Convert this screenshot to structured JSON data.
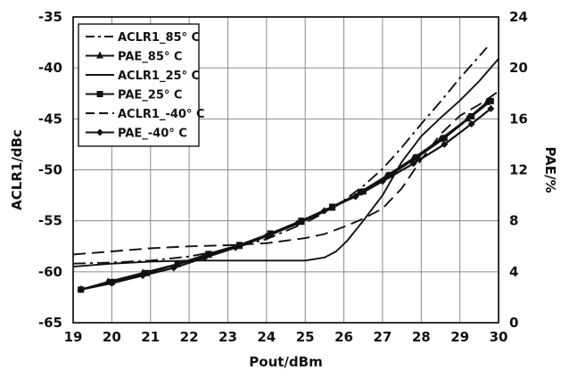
{
  "chart_data": {
    "type": "line",
    "xlabel": "Pout/dBm",
    "ylabel_left": "ACLR1/dBc",
    "ylabel_right": "PAE/%",
    "xlim": [
      19,
      30
    ],
    "ylim_left": [
      -65,
      -35
    ],
    "ylim_right": [
      0,
      24
    ],
    "x_ticks": [
      19,
      20,
      21,
      22,
      23,
      24,
      25,
      26,
      27,
      28,
      29,
      30
    ],
    "y_left_ticks": [
      -65,
      -60,
      -55,
      -50,
      -45,
      -40,
      -35
    ],
    "y_right_ticks": [
      0,
      4,
      8,
      12,
      16,
      20,
      24
    ],
    "grid": true,
    "legend_position": "top-left",
    "series": [
      {
        "name": "ACLR1_85° C",
        "axis": "left",
        "style": "dashdot",
        "marker": "none",
        "x": [
          19,
          20,
          21,
          22,
          23,
          24,
          25,
          25.5,
          26,
          26.5,
          27,
          27.5,
          28,
          28.5,
          29,
          29.7
        ],
        "y": [
          -59.2,
          -59.1,
          -58.9,
          -58.5,
          -57.8,
          -56.8,
          -55.2,
          -54.2,
          -53.0,
          -51.6,
          -49.9,
          -47.8,
          -45.5,
          -43.3,
          -41.0,
          -38.0
        ]
      },
      {
        "name": "PAE_85° C",
        "axis": "right",
        "style": "solid",
        "marker": "triangle",
        "x": [
          19.2,
          19.9,
          20.8,
          21.7,
          22.5,
          23.3,
          24.1,
          24.9,
          25.7,
          26.4,
          27.1,
          27.8,
          28.5,
          29.2,
          29.7
        ],
        "y": [
          2.6,
          3.2,
          3.9,
          4.6,
          5.3,
          6.0,
          6.9,
          7.9,
          9.0,
          10.2,
          11.5,
          12.9,
          14.4,
          16.0,
          17.3
        ]
      },
      {
        "name": "ACLR1_25° C",
        "axis": "left",
        "style": "solid",
        "marker": "none",
        "x": [
          19,
          20,
          21,
          22,
          23,
          24,
          25,
          25.5,
          25.8,
          26.1,
          26.5,
          27,
          27.5,
          28,
          28.5,
          29,
          29.5,
          30
        ],
        "y": [
          -59.5,
          -59.2,
          -59.0,
          -58.9,
          -58.9,
          -58.9,
          -58.9,
          -58.6,
          -58.0,
          -56.9,
          -55.0,
          -52.5,
          -49.2,
          -46.7,
          -44.9,
          -43.2,
          -41.3,
          -39.1
        ]
      },
      {
        "name": "PAE_25° C",
        "axis": "right",
        "style": "solid",
        "marker": "square",
        "x": [
          19.2,
          20.0,
          20.9,
          21.7,
          22.5,
          23.3,
          24.1,
          24.9,
          25.7,
          26.5,
          27.2,
          27.9,
          28.6,
          29.3,
          29.8
        ],
        "y": [
          2.6,
          3.2,
          3.9,
          4.6,
          5.4,
          6.1,
          7.0,
          8.0,
          9.1,
          10.3,
          11.6,
          13.0,
          14.5,
          16.2,
          17.4
        ]
      },
      {
        "name": "ACLR1_-40° C",
        "axis": "left",
        "style": "dashed",
        "marker": "none",
        "x": [
          19,
          20,
          21,
          22,
          23,
          24,
          25,
          25.5,
          26,
          26.5,
          27,
          27.5,
          28,
          28.5,
          29,
          29.5,
          30
        ],
        "y": [
          -58.3,
          -58.0,
          -57.7,
          -57.5,
          -57.4,
          -57.2,
          -56.7,
          -56.3,
          -55.6,
          -54.8,
          -53.8,
          -51.8,
          -49.0,
          -46.5,
          -44.7,
          -43.6,
          -42.3
        ]
      },
      {
        "name": "PAE_-40° C",
        "axis": "right",
        "style": "solid",
        "marker": "diamond",
        "x": [
          19.2,
          20.0,
          20.8,
          21.6,
          22.4,
          23.2,
          24.0,
          24.8,
          25.5,
          26.3,
          27.0,
          27.8,
          28.6,
          29.3,
          29.8
        ],
        "y": [
          2.6,
          3.1,
          3.7,
          4.3,
          5.1,
          5.9,
          6.8,
          7.8,
          8.8,
          9.9,
          11.1,
          12.5,
          14.0,
          15.6,
          16.8
        ]
      }
    ]
  }
}
